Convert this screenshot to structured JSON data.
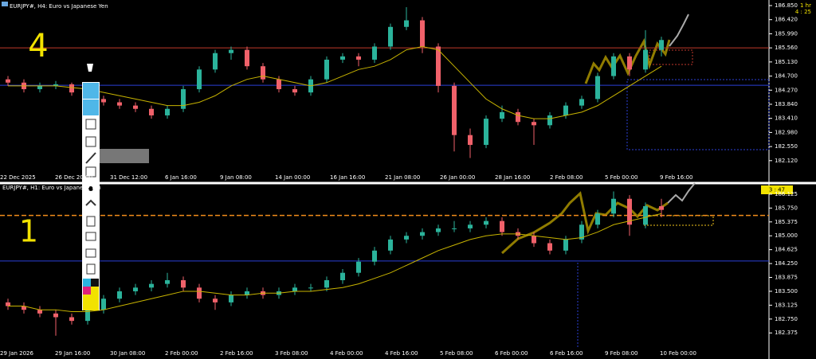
{
  "charts": [
    {
      "label": "EURJPY#, H4:  Euro vs Japanese Yen",
      "timeframe": "1 hr",
      "countdown": "4 : 25",
      "annotation": "4",
      "ylim": [
        181.8,
        187.02
      ],
      "yticks": [
        {
          "value": 186.85,
          "label": "186.850"
        },
        {
          "value": 186.42,
          "label": "186.420"
        },
        {
          "value": 185.99,
          "label": "185.990"
        },
        {
          "value": 185.56,
          "label": "185.560"
        },
        {
          "value": 185.13,
          "label": "185.130"
        },
        {
          "value": 184.7,
          "label": "184.700"
        },
        {
          "value": 184.27,
          "label": "184.270"
        },
        {
          "value": 183.84,
          "label": "183.840"
        },
        {
          "value": 183.41,
          "label": "183.410"
        },
        {
          "value": 182.98,
          "label": "182.980"
        },
        {
          "value": 182.55,
          "label": "182.550"
        },
        {
          "value": 182.12,
          "label": "182.120"
        }
      ],
      "xticks": [
        "22 Dec 2025",
        "26 Dec 20:00",
        "31 Dec 12:00",
        "6 Jan 16:00",
        "9 Jan 08:00",
        "14 Jan 00:00",
        "16 Jan 16:00",
        "21 Jan 08:00",
        "26 Jan 00:00",
        "28 Jan 16:00",
        "2 Feb 08:00",
        "5 Feb 00:00",
        "9 Feb 16:00"
      ],
      "hlines": [
        {
          "value": 185.56,
          "color": "#c0392b"
        },
        {
          "value": 184.42,
          "color": "#2b3fd6"
        }
      ],
      "candles": [
        [
          184.6,
          184.7,
          184.4,
          184.5
        ],
        [
          184.5,
          184.6,
          184.2,
          184.3
        ],
        [
          184.3,
          184.5,
          184.2,
          184.4
        ],
        [
          184.4,
          184.55,
          184.3,
          184.45
        ],
        [
          184.45,
          184.5,
          184.1,
          184.2
        ],
        [
          184.2,
          184.3,
          183.9,
          184.0
        ],
        [
          184.0,
          184.1,
          183.8,
          183.9
        ],
        [
          183.9,
          184.0,
          183.7,
          183.8
        ],
        [
          183.8,
          183.9,
          183.6,
          183.7
        ],
        [
          183.7,
          183.8,
          183.4,
          183.5
        ],
        [
          183.5,
          183.8,
          183.4,
          183.7
        ],
        [
          183.7,
          184.4,
          183.6,
          184.3
        ],
        [
          184.3,
          185.0,
          184.2,
          184.9
        ],
        [
          184.9,
          185.5,
          184.8,
          185.4
        ],
        [
          185.4,
          185.6,
          185.2,
          185.5
        ],
        [
          185.5,
          185.6,
          184.9,
          185.0
        ],
        [
          185.0,
          185.1,
          184.5,
          184.6
        ],
        [
          184.6,
          184.7,
          184.2,
          184.3
        ],
        [
          184.3,
          184.4,
          184.1,
          184.2
        ],
        [
          184.2,
          184.7,
          184.1,
          184.6
        ],
        [
          184.6,
          185.3,
          184.5,
          185.2
        ],
        [
          185.2,
          185.4,
          185.1,
          185.3
        ],
        [
          185.3,
          185.4,
          185.0,
          185.2
        ],
        [
          185.2,
          185.7,
          185.1,
          185.6
        ],
        [
          185.6,
          186.3,
          185.5,
          186.2
        ],
        [
          186.2,
          186.8,
          186.1,
          186.4
        ],
        [
          186.4,
          186.5,
          185.4,
          185.6
        ],
        [
          185.6,
          185.7,
          184.2,
          184.4
        ],
        [
          184.4,
          184.5,
          182.4,
          182.9
        ],
        [
          182.9,
          183.1,
          182.2,
          182.6
        ],
        [
          182.6,
          183.5,
          182.5,
          183.4
        ],
        [
          183.4,
          183.8,
          183.3,
          183.6
        ],
        [
          183.6,
          183.7,
          183.2,
          183.3
        ],
        [
          183.3,
          183.4,
          182.6,
          183.2
        ],
        [
          183.2,
          183.6,
          183.1,
          183.5
        ],
        [
          183.5,
          183.9,
          183.4,
          183.8
        ],
        [
          183.8,
          184.1,
          183.7,
          184.0
        ],
        [
          184.0,
          184.8,
          183.9,
          184.7
        ],
        [
          184.7,
          185.4,
          184.6,
          185.3
        ],
        [
          185.3,
          185.4,
          184.7,
          184.9
        ],
        [
          184.9,
          186.1,
          184.8,
          185.5
        ],
        [
          185.5,
          185.9,
          185.3,
          185.8
        ]
      ],
      "ma": [
        184.4,
        184.4,
        184.4,
        184.4,
        184.35,
        184.3,
        184.2,
        184.1,
        184.0,
        183.9,
        183.8,
        183.8,
        183.9,
        184.1,
        184.4,
        184.6,
        184.7,
        184.6,
        184.5,
        184.4,
        184.5,
        184.7,
        184.9,
        185.0,
        185.2,
        185.5,
        185.6,
        185.5,
        185.0,
        184.5,
        184.0,
        183.7,
        183.5,
        183.4,
        183.4,
        183.5,
        183.6,
        183.8,
        184.1,
        184.4,
        184.7,
        185.0
      ]
    },
    {
      "label": "EURJPY#, H1:  Euro vs Japanese Yen",
      "countdown": "3 : 47",
      "annotation": "1",
      "ylim": [
        181.95,
        186.36
      ],
      "yticks": [
        {
          "value": 186.125,
          "label": "186.125"
        },
        {
          "value": 185.75,
          "label": "185.750"
        },
        {
          "value": 185.375,
          "label": "185.375"
        },
        {
          "value": 185.0,
          "label": "185.000"
        },
        {
          "value": 184.625,
          "label": "184.625"
        },
        {
          "value": 184.25,
          "label": "184.250"
        },
        {
          "value": 183.875,
          "label": "183.875"
        },
        {
          "value": 183.5,
          "label": "183.500"
        },
        {
          "value": 183.125,
          "label": "183.125"
        },
        {
          "value": 182.75,
          "label": "182.750"
        },
        {
          "value": 182.375,
          "label": "182.375"
        }
      ],
      "xticks": [
        "29 Jan 2026",
        "29 Jan 16:00",
        "30 Jan 08:00",
        "2 Feb 00:00",
        "2 Feb 16:00",
        "3 Feb 08:00",
        "4 Feb 00:00",
        "4 Feb 16:00",
        "5 Feb 08:00",
        "6 Feb 00:00",
        "6 Feb 16:00",
        "9 Feb 08:00",
        "10 Feb 00:00"
      ],
      "hlines": [
        {
          "value": 185.55,
          "color": "#f28c1a"
        },
        {
          "value": 184.32,
          "color": "#2b3fd6"
        }
      ],
      "candles": [
        [
          183.2,
          183.3,
          183.0,
          183.1
        ],
        [
          183.1,
          183.2,
          182.9,
          183.0
        ],
        [
          183.0,
          183.1,
          182.8,
          182.9
        ],
        [
          182.9,
          183.0,
          182.3,
          182.8
        ],
        [
          182.8,
          182.9,
          182.6,
          182.7
        ],
        [
          182.7,
          183.1,
          182.6,
          183.0
        ],
        [
          183.0,
          183.4,
          182.9,
          183.3
        ],
        [
          183.3,
          183.6,
          183.2,
          183.5
        ],
        [
          183.5,
          183.7,
          183.4,
          183.6
        ],
        [
          183.6,
          183.8,
          183.5,
          183.7
        ],
        [
          183.7,
          184.0,
          183.6,
          183.8
        ],
        [
          183.8,
          183.9,
          183.5,
          183.6
        ],
        [
          183.6,
          183.7,
          183.2,
          183.3
        ],
        [
          183.3,
          183.4,
          183.0,
          183.2
        ],
        [
          183.2,
          183.5,
          183.1,
          183.4
        ],
        [
          183.4,
          183.6,
          183.3,
          183.5
        ],
        [
          183.5,
          183.6,
          183.3,
          183.4
        ],
        [
          183.4,
          183.6,
          183.3,
          183.5
        ],
        [
          183.5,
          183.7,
          183.4,
          183.6
        ],
        [
          183.6,
          183.7,
          183.5,
          183.6
        ],
        [
          183.6,
          183.9,
          183.5,
          183.8
        ],
        [
          183.8,
          184.1,
          183.7,
          184.0
        ],
        [
          184.0,
          184.4,
          183.9,
          184.3
        ],
        [
          184.3,
          184.7,
          184.2,
          184.6
        ],
        [
          184.6,
          185.0,
          184.5,
          184.9
        ],
        [
          184.9,
          185.1,
          184.8,
          185.0
        ],
        [
          185.0,
          185.2,
          184.9,
          185.1
        ],
        [
          185.1,
          185.3,
          185.0,
          185.2
        ],
        [
          185.2,
          185.4,
          185.1,
          185.2
        ],
        [
          185.2,
          185.4,
          185.1,
          185.3
        ],
        [
          185.3,
          185.5,
          185.2,
          185.4
        ],
        [
          185.4,
          185.5,
          185.0,
          185.1
        ],
        [
          185.1,
          185.2,
          184.9,
          185.0
        ],
        [
          185.0,
          185.1,
          184.7,
          184.8
        ],
        [
          184.8,
          184.9,
          184.5,
          184.6
        ],
        [
          184.6,
          185.0,
          184.5,
          184.9
        ],
        [
          184.9,
          185.4,
          184.8,
          185.3
        ],
        [
          185.3,
          185.7,
          185.2,
          185.6
        ],
        [
          185.6,
          186.2,
          185.5,
          186.0
        ],
        [
          186.0,
          186.1,
          185.0,
          185.3
        ],
        [
          185.3,
          185.9,
          185.2,
          185.8
        ],
        [
          185.8,
          186.0,
          185.5,
          185.7
        ]
      ],
      "ma": [
        183.1,
        183.1,
        183.0,
        183.0,
        182.95,
        182.95,
        183.0,
        183.1,
        183.2,
        183.3,
        183.4,
        183.5,
        183.5,
        183.45,
        183.4,
        183.4,
        183.45,
        183.45,
        183.5,
        183.5,
        183.55,
        183.6,
        183.7,
        183.85,
        184.0,
        184.2,
        184.4,
        184.6,
        184.75,
        184.9,
        185.0,
        185.05,
        185.05,
        185.0,
        184.95,
        184.9,
        184.95,
        185.1,
        185.3,
        185.4,
        185.5,
        185.6
      ]
    }
  ]
}
